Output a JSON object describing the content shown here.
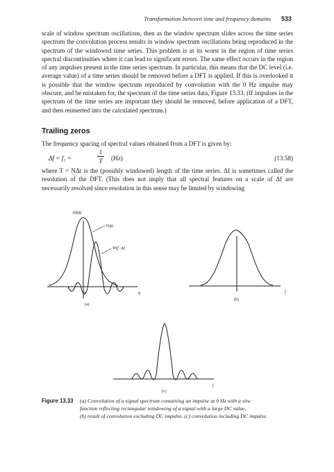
{
  "running_head": {
    "title": "Transformation between time and frequency domains",
    "page_number": "533"
  },
  "paragraph_1": "scale of window spectrum oscillations, then as the window spectrum slides across the time series spectrum the convolution process results in window spectrum oscillations being reproduced in the spectrum of the windowed time series. This problem is at its worst in the region of time series spectral discontinuities where it can lead to significant errors. The same effect occurs in the region of any impulses present in the time series spectrum. In particular, this means that the DC level (i.e. average value) of a time series should be removed before a DFT is applied. If this is overlooked it is possible that the window spectrum reproduced by convolution with the 0 Hz impulse may obscure, and be mistaken for, the spectrum of the time series data, Figure 13.33. (If impulses in the spectrum of the time series are important they should be removed, before application of a DFT, and then reinserted into the calculated spectrum.)",
  "section_heading": "Trailing zeros",
  "paragraph_2": "The frequency spacing of spectral values obtained from a DFT is given by:",
  "equation": {
    "lhs": "Δf = f₁ =",
    "numerator": "1",
    "denominator": "T",
    "unit": "(Hz)",
    "number": "(13.58)"
  },
  "paragraph_3": "where T = NΔt is the (possibly windowed) length of the time series. Δf is sometimes called the resolution of the DFT. (This does not imply that all spectral features on a scale of Δf are necessarily resolved since resolution in this sense may be limited by windowing",
  "figure": {
    "panel_a": {
      "y_label": "Aδ(ϕ)",
      "curve_label_v": "V(ϕ)",
      "curve_label_w": "W(f−ϕ)",
      "origin_label": "0",
      "axis_label": "ϕ",
      "panel_label": "(a)"
    },
    "panel_b": {
      "axis_label": "f",
      "panel_label": "(b)"
    },
    "panel_c": {
      "axis_label": "f",
      "panel_label": "(c)"
    }
  },
  "caption": {
    "label": "Figure 13.33",
    "line_1": "(a) Convolution of a signal spectrum containing an impulse at 0 Hz with a sinc",
    "line_2": "function reflecting rectangular windowing of a signal with a large DC value,",
    "line_3": "(b) result of convolution excluding DC impulse, (c) convolution including DC impulse."
  }
}
